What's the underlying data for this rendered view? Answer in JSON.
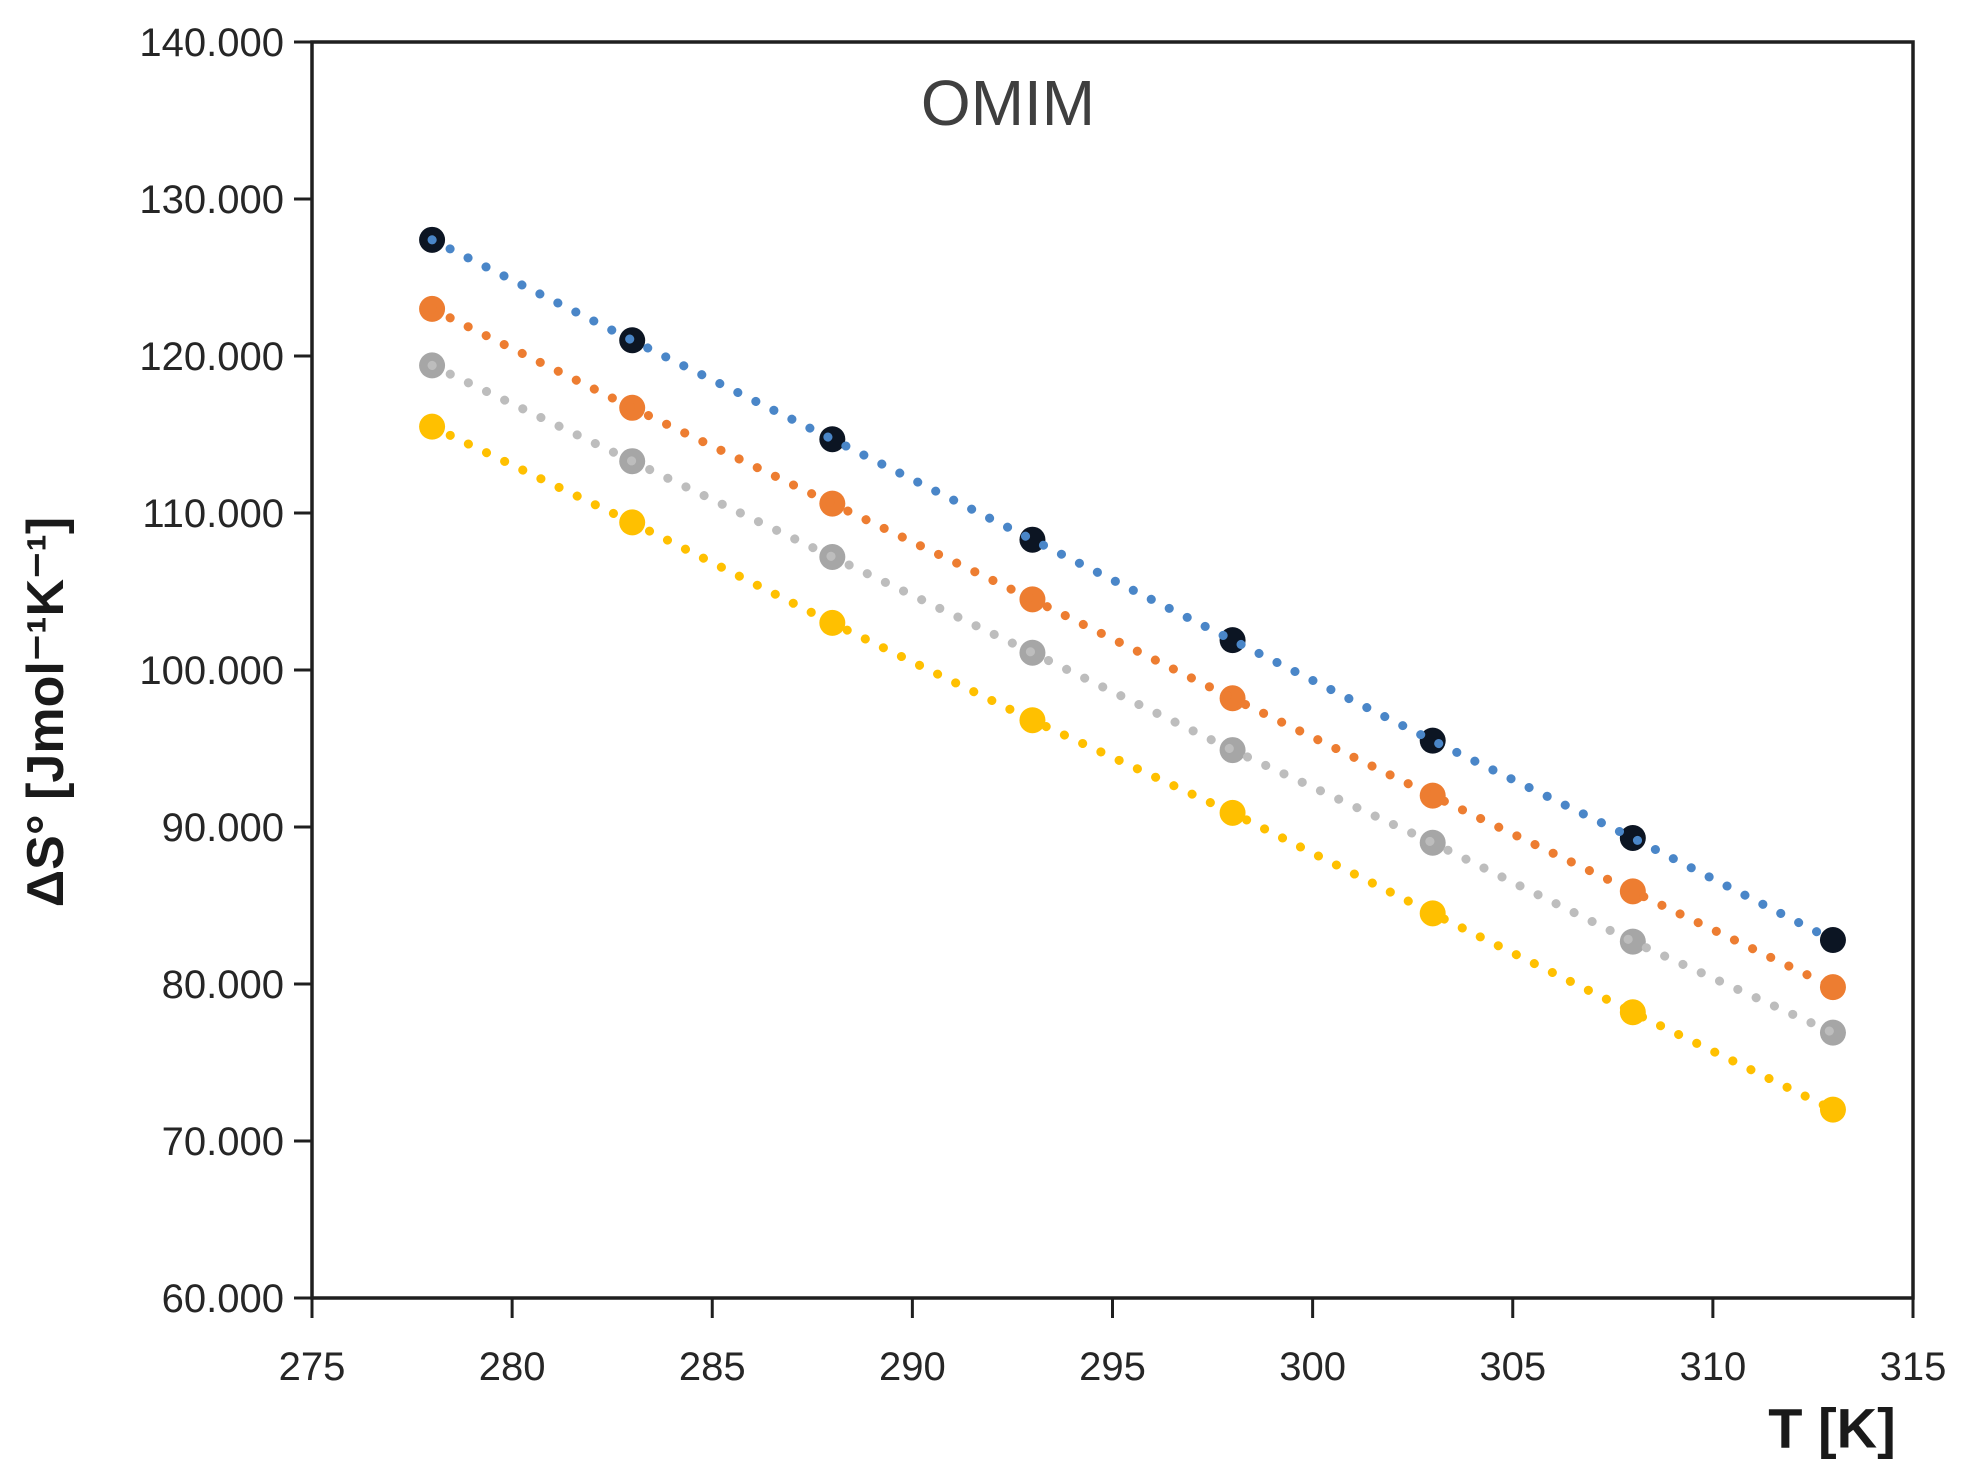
{
  "chart_data": {
    "type": "scatter",
    "title": "OMIM",
    "xlabel": "T [K]",
    "ylabel": "ΔS° [Jmol⁻¹K⁻¹]",
    "background": "#ffffff",
    "axis_color": "#1f1f1f",
    "grid": false,
    "legend": false,
    "xlim": [
      275,
      315
    ],
    "ylim": [
      60000,
      140000
    ],
    "x_ticks": [
      275,
      280,
      285,
      290,
      295,
      300,
      305,
      310,
      315
    ],
    "x_tick_labels": [
      "275",
      "280",
      "285",
      "290",
      "295",
      "300",
      "305",
      "310",
      "315"
    ],
    "y_ticks": [
      60000,
      70000,
      80000,
      90000,
      100000,
      110000,
      120000,
      130000,
      140000
    ],
    "y_tick_labels": [
      "60.000",
      "70.000",
      "80.000",
      "90.000",
      "100.000",
      "110.000",
      "120.000",
      "130.000",
      "140.000"
    ],
    "x": [
      278,
      283,
      288,
      293,
      298,
      303,
      308,
      313
    ],
    "series": [
      {
        "name": "dark-navy",
        "marker_color": "#0c1523",
        "line_color": "#4a86c8",
        "trendline": "dotted",
        "values": [
          127400,
          121000,
          114700,
          108300,
          101900,
          95500,
          89300,
          82800
        ]
      },
      {
        "name": "orange",
        "marker_color": "#ed7d31",
        "line_color": "#ed7d31",
        "trendline": "dotted",
        "values": [
          123000,
          116700,
          110600,
          104500,
          98200,
          92000,
          85900,
          79800
        ]
      },
      {
        "name": "gray",
        "marker_color": "#a6a6a6",
        "line_color": "#bdbdbd",
        "trendline": "dotted",
        "values": [
          119400,
          113300,
          107200,
          101100,
          94900,
          89000,
          82700,
          76900
        ]
      },
      {
        "name": "yellow",
        "marker_color": "#ffc000",
        "line_color": "#ffc000",
        "trendline": "dotted",
        "values": [
          115500,
          109400,
          103000,
          96800,
          90900,
          84500,
          78200,
          72000
        ]
      }
    ]
  }
}
